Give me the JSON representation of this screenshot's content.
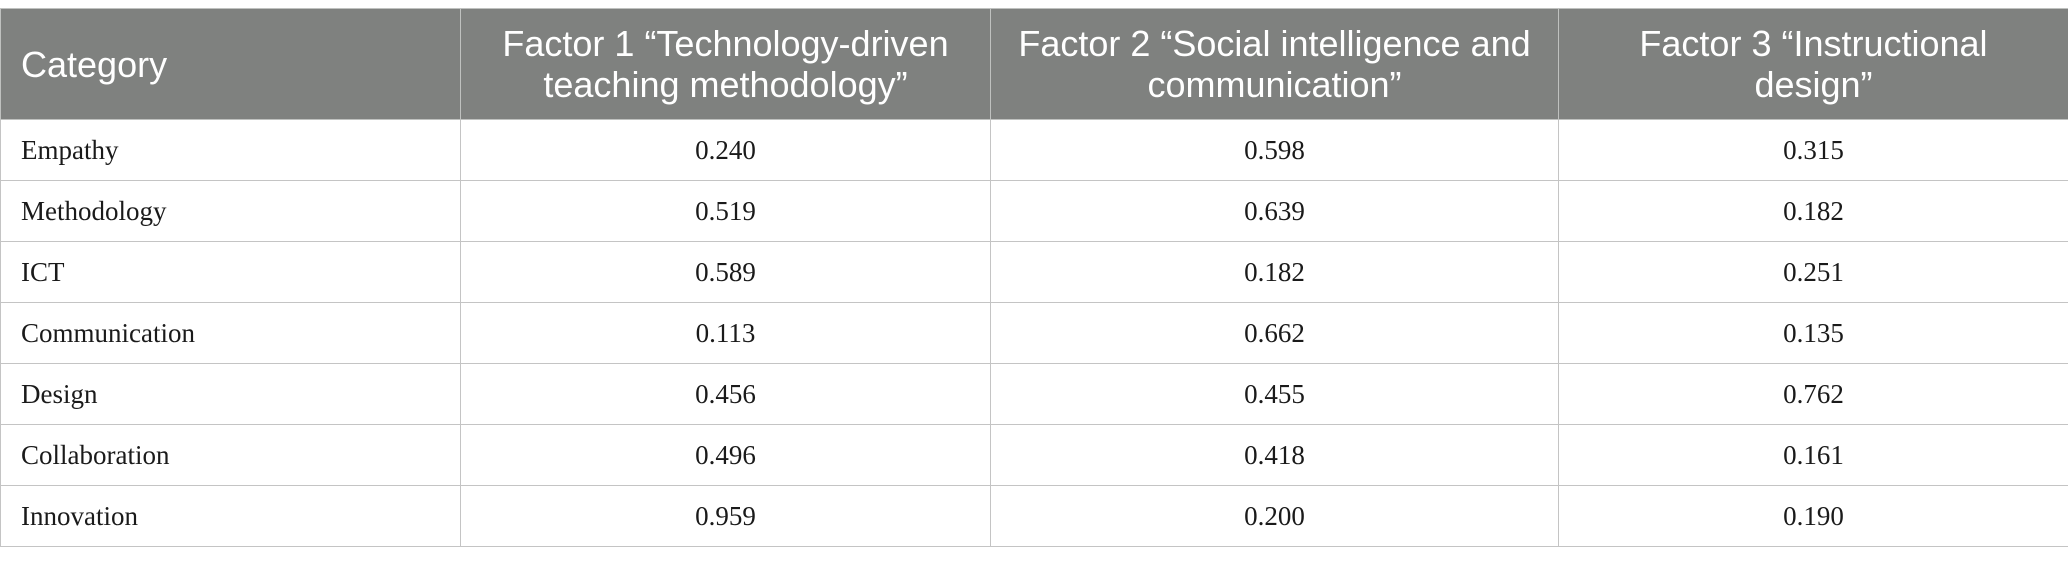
{
  "table": {
    "headers": [
      "Category",
      "Factor 1 “Technology-driven teaching methodology”",
      "Factor 2 “Social intelligence and communication”",
      "Factor 3 “Instructional design”"
    ],
    "rows": [
      [
        "Empathy",
        "0.240",
        "0.598",
        "0.315"
      ],
      [
        "Methodology",
        "0.519",
        "0.639",
        "0.182"
      ],
      [
        "ICT",
        "0.589",
        "0.182",
        "0.251"
      ],
      [
        "Communication",
        "0.113",
        "0.662",
        "0.135"
      ],
      [
        "Design",
        "0.456",
        "0.455",
        "0.762"
      ],
      [
        "Collaboration",
        "0.496",
        "0.418",
        "0.161"
      ],
      [
        "Innovation",
        "0.959",
        "0.200",
        "0.190"
      ]
    ]
  },
  "colors": {
    "header_bg": "#7f817f",
    "header_text": "#ffffff",
    "border": "#c4c4c4"
  }
}
